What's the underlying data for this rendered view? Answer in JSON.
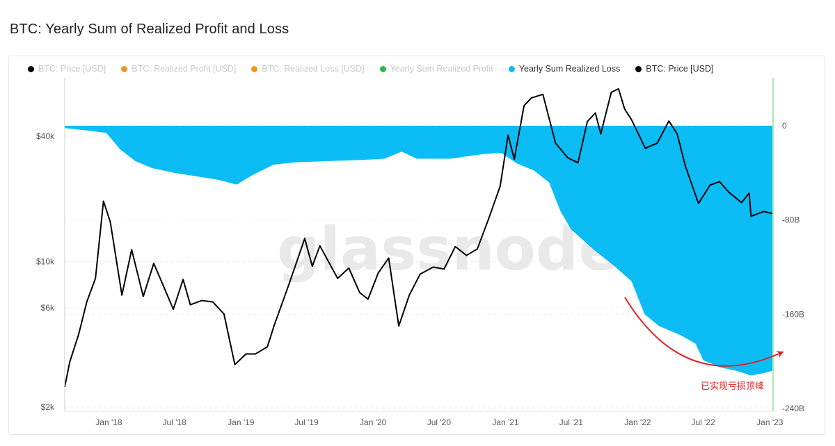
{
  "title": "BTC: Yearly Sum of Realized Profit and Loss",
  "watermark": "glassnode",
  "annotation": "已实现亏损顶峰",
  "legend": [
    {
      "label": "BTC: Price [USD]",
      "color": "#000000",
      "active": false
    },
    {
      "label": "BTC: Realized Profit [USD]",
      "color": "#f7931a",
      "active": false
    },
    {
      "label": "BTC: Realized Loss [USD]",
      "color": "#f7931a",
      "active": false
    },
    {
      "label": "Yearly Sum Realized Profit",
      "color": "#2db84d",
      "active": false
    },
    {
      "label": "Yearly Sum Realized Loss",
      "color": "#0bbcf5",
      "active": true
    },
    {
      "label": "BTC: Price [USD]",
      "color": "#000000",
      "active": true
    }
  ],
  "colors": {
    "loss_fill": "#0bbcf5",
    "price_line": "#000000",
    "annotation": "#e02323",
    "right_axis": "#8fe39f"
  },
  "chart_data": {
    "type": "area",
    "x_tick_labels": [
      "Jan '18",
      "Jul '18",
      "Jan '19",
      "Jul '19",
      "Jan '20",
      "Jul '20",
      "Jan '21",
      "Jul '21",
      "Jan '22",
      "Jul '22",
      "Jan '23"
    ],
    "x_range": [
      "2017-09-01",
      "2023-01-10"
    ],
    "left_axis": {
      "label": "",
      "scale": "log",
      "ticks": [
        "$2k",
        "$6k",
        "$10k",
        "$40k"
      ],
      "tick_values": [
        2000,
        6000,
        10000,
        40000
      ]
    },
    "right_axis": {
      "label": "",
      "ticks": [
        "0",
        "-80B",
        "-160B",
        "-240B"
      ],
      "tick_values": [
        0,
        -80,
        -160,
        -240
      ],
      "unit": "B USD"
    },
    "series": [
      {
        "name": "Yearly Sum Realized Loss",
        "axis": "right",
        "points": [
          [
            "2017-09-01",
            -2
          ],
          [
            "2017-11-01",
            -4
          ],
          [
            "2017-12-25",
            -6
          ],
          [
            "2018-02-01",
            -20
          ],
          [
            "2018-03-15",
            -30
          ],
          [
            "2018-05-01",
            -36
          ],
          [
            "2018-07-01",
            -40
          ],
          [
            "2018-09-01",
            -43
          ],
          [
            "2018-11-01",
            -46
          ],
          [
            "2018-12-20",
            -50
          ],
          [
            "2019-02-01",
            -42
          ],
          [
            "2019-04-01",
            -33
          ],
          [
            "2019-06-01",
            -31
          ],
          [
            "2019-09-01",
            -30
          ],
          [
            "2019-12-01",
            -29
          ],
          [
            "2020-02-01",
            -28
          ],
          [
            "2020-03-20",
            -22
          ],
          [
            "2020-05-01",
            -28
          ],
          [
            "2020-08-01",
            -28
          ],
          [
            "2020-11-01",
            -24
          ],
          [
            "2020-12-20",
            -23
          ],
          [
            "2021-02-01",
            -32
          ],
          [
            "2021-03-20",
            -38
          ],
          [
            "2021-05-01",
            -48
          ],
          [
            "2021-06-01",
            -72
          ],
          [
            "2021-07-01",
            -88
          ],
          [
            "2021-09-01",
            -105
          ],
          [
            "2021-11-01",
            -120
          ],
          [
            "2021-12-15",
            -132
          ],
          [
            "2022-01-20",
            -160
          ],
          [
            "2022-03-01",
            -170
          ],
          [
            "2022-05-01",
            -178
          ],
          [
            "2022-06-10",
            -185
          ],
          [
            "2022-07-01",
            -199
          ],
          [
            "2022-08-15",
            -205
          ],
          [
            "2022-10-01",
            -208
          ],
          [
            "2022-11-10",
            -212
          ],
          [
            "2022-12-15",
            -210
          ],
          [
            "2023-01-08",
            -208
          ]
        ]
      },
      {
        "name": "BTC: Price [USD]",
        "axis": "left",
        "points": [
          [
            "2017-09-01",
            2500
          ],
          [
            "2017-09-15",
            3300
          ],
          [
            "2017-10-10",
            4500
          ],
          [
            "2017-11-01",
            6400
          ],
          [
            "2017-11-25",
            8300
          ],
          [
            "2017-12-17",
            19500
          ],
          [
            "2018-01-05",
            15500
          ],
          [
            "2018-02-06",
            6900
          ],
          [
            "2018-03-05",
            11400
          ],
          [
            "2018-04-06",
            6800
          ],
          [
            "2018-05-05",
            9800
          ],
          [
            "2018-06-28",
            5900
          ],
          [
            "2018-07-25",
            8200
          ],
          [
            "2018-08-14",
            6200
          ],
          [
            "2018-09-15",
            6500
          ],
          [
            "2018-10-15",
            6400
          ],
          [
            "2018-11-15",
            5600
          ],
          [
            "2018-12-15",
            3200
          ],
          [
            "2019-01-15",
            3600
          ],
          [
            "2019-02-10",
            3600
          ],
          [
            "2019-03-15",
            3900
          ],
          [
            "2019-04-02",
            4900
          ],
          [
            "2019-05-15",
            7900
          ],
          [
            "2019-06-26",
            12900
          ],
          [
            "2019-07-17",
            9500
          ],
          [
            "2019-08-07",
            11900
          ],
          [
            "2019-09-25",
            8300
          ],
          [
            "2019-10-26",
            9300
          ],
          [
            "2019-11-25",
            7100
          ],
          [
            "2019-12-18",
            6600
          ],
          [
            "2020-01-15",
            8800
          ],
          [
            "2020-02-13",
            10400
          ],
          [
            "2020-03-12",
            4900
          ],
          [
            "2020-04-10",
            6900
          ],
          [
            "2020-05-10",
            8700
          ],
          [
            "2020-06-15",
            9400
          ],
          [
            "2020-07-15",
            9200
          ],
          [
            "2020-08-15",
            11800
          ],
          [
            "2020-09-15",
            10700
          ],
          [
            "2020-10-15",
            11500
          ],
          [
            "2020-11-15",
            16000
          ],
          [
            "2020-12-17",
            23000
          ],
          [
            "2021-01-08",
            40500
          ],
          [
            "2021-01-25",
            31000
          ],
          [
            "2021-02-21",
            56000
          ],
          [
            "2021-03-13",
            61000
          ],
          [
            "2021-04-14",
            63500
          ],
          [
            "2021-05-19",
            37000
          ],
          [
            "2021-06-22",
            31500
          ],
          [
            "2021-07-20",
            29800
          ],
          [
            "2021-08-15",
            47000
          ],
          [
            "2021-09-06",
            51700
          ],
          [
            "2021-09-21",
            41000
          ],
          [
            "2021-10-20",
            65000
          ],
          [
            "2021-11-09",
            67500
          ],
          [
            "2021-11-26",
            54000
          ],
          [
            "2021-12-15",
            48000
          ],
          [
            "2022-01-22",
            35000
          ],
          [
            "2022-02-24",
            37000
          ],
          [
            "2022-03-28",
            47300
          ],
          [
            "2022-04-20",
            41000
          ],
          [
            "2022-05-12",
            29000
          ],
          [
            "2022-06-18",
            19000
          ],
          [
            "2022-07-20",
            23300
          ],
          [
            "2022-08-15",
            24200
          ],
          [
            "2022-09-10",
            21500
          ],
          [
            "2022-10-15",
            19200
          ],
          [
            "2022-11-05",
            21300
          ],
          [
            "2022-11-10",
            16500
          ],
          [
            "2022-12-15",
            17400
          ],
          [
            "2023-01-08",
            17000
          ]
        ]
      }
    ]
  }
}
